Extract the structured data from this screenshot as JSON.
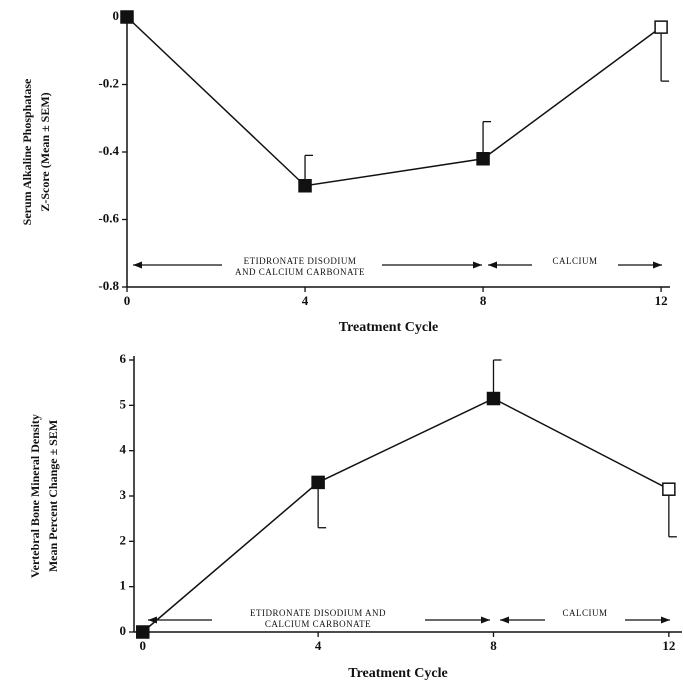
{
  "chart_data": [
    {
      "type": "line",
      "xlabel": "Treatment Cycle",
      "ylabel": [
        "Serum Alkaline Phosphatase",
        "Z-Score (Mean ± SEM)"
      ],
      "x": [
        0,
        4,
        8,
        12
      ],
      "series": [
        {
          "color": "#111111",
          "values": [
            0,
            -0.5,
            -0.42,
            -0.03
          ],
          "errors": [
            null,
            0.09,
            0.11,
            0.16
          ],
          "error_sides": [
            null,
            "up",
            "up",
            "down"
          ],
          "markers": [
            "filled",
            "filled",
            "filled",
            "open"
          ]
        }
      ],
      "xlim": [
        0,
        12.2
      ],
      "xticks": [
        0,
        4,
        8,
        12
      ],
      "ylim": [
        -0.8,
        0
      ],
      "yticks": [
        0,
        -0.2,
        -0.4,
        -0.6,
        -0.8
      ],
      "annotations": [
        [
          "ETIDRONATE DISODIUM",
          "AND CALCIUM CARBONATE"
        ],
        [
          "CALCIUM"
        ]
      ]
    },
    {
      "type": "line",
      "xlabel": "Treatment Cycle",
      "ylabel": [
        "Vertebral Bone Mineral Density",
        "Mean Percent Change ± SEM"
      ],
      "x": [
        0,
        4,
        8,
        12
      ],
      "series": [
        {
          "color": "#111111",
          "values": [
            0,
            3.3,
            5.15,
            3.15
          ],
          "errors": [
            null,
            1.0,
            0.85,
            1.05
          ],
          "error_sides": [
            null,
            "down",
            "up",
            "down"
          ],
          "markers": [
            "filled",
            "filled",
            "filled",
            "open"
          ]
        }
      ],
      "xlim": [
        -0.2,
        12.3
      ],
      "xticks": [
        0,
        4,
        8,
        12
      ],
      "ylim": [
        0,
        6
      ],
      "yticks": [
        0,
        1,
        2,
        3,
        4,
        5,
        6
      ],
      "annotations": [
        [
          "ETIDRONATE DISODIUM AND",
          "CALCIUM CARBONATE"
        ],
        [
          "CALCIUM"
        ]
      ]
    }
  ]
}
